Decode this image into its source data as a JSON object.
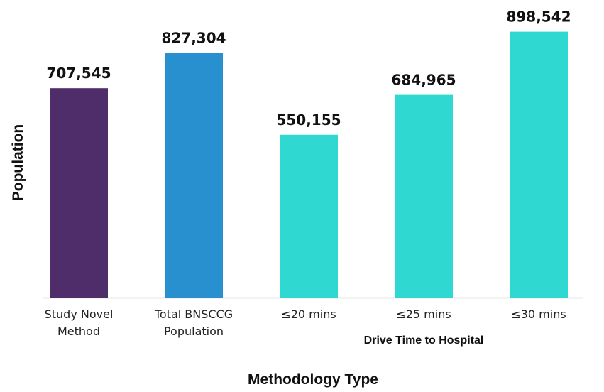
{
  "chart_data": {
    "type": "bar",
    "categories": [
      [
        "Study Novel",
        "Method"
      ],
      [
        "Total BNSCCG",
        "Population"
      ],
      [
        "≤20 mins"
      ],
      [
        "≤25 mins"
      ],
      [
        "≤30 mins"
      ]
    ],
    "values": [
      707545,
      827304,
      550155,
      684965,
      898542
    ],
    "value_labels": [
      "707,545",
      "827,304",
      "550,155",
      "684,965",
      "898,542"
    ],
    "colors": [
      "#4f2d6b",
      "#2990cf",
      "#2fd9d1",
      "#2fd9d1",
      "#2fd9d1"
    ],
    "axis_color": "#cfcfcf",
    "xlabel": "Methodology Type",
    "ylabel": "Population",
    "group_label": "Drive Time to Hospital",
    "ylim": [
      0,
      900000
    ],
    "grid": false,
    "legend": "none"
  }
}
